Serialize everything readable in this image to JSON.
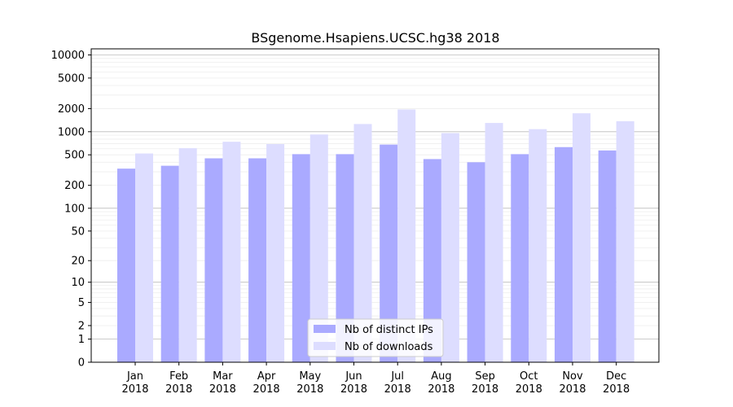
{
  "chart_data": {
    "type": "bar",
    "title": "BSgenome.Hsapiens.UCSC.hg38 2018",
    "xlabel": "",
    "ylabel": "",
    "yscale": "log1p",
    "ylim": [
      0,
      12000
    ],
    "yticks": [
      0,
      1,
      2,
      5,
      10,
      20,
      50,
      100,
      200,
      500,
      1000,
      2000,
      5000,
      10000
    ],
    "ytick_labels": [
      "0",
      "1",
      "2",
      "5",
      "10",
      "20",
      "50",
      "100",
      "200",
      "500",
      "1000",
      "2000",
      "5000",
      "10000"
    ],
    "grid": true,
    "legend_position": "bottom-center",
    "categories": [
      [
        "Jan",
        "2018"
      ],
      [
        "Feb",
        "2018"
      ],
      [
        "Mar",
        "2018"
      ],
      [
        "Apr",
        "2018"
      ],
      [
        "May",
        "2018"
      ],
      [
        "Jun",
        "2018"
      ],
      [
        "Jul",
        "2018"
      ],
      [
        "Aug",
        "2018"
      ],
      [
        "Sep",
        "2018"
      ],
      [
        "Oct",
        "2018"
      ],
      [
        "Nov",
        "2018"
      ],
      [
        "Dec",
        "2018"
      ]
    ],
    "series": [
      {
        "name": "Nb of distinct IPs",
        "color": "#aaaaff",
        "values": [
          330,
          360,
          450,
          450,
          510,
          510,
          680,
          440,
          400,
          510,
          630,
          570
        ]
      },
      {
        "name": "Nb of downloads",
        "color": "#ddddff",
        "values": [
          520,
          610,
          740,
          690,
          920,
          1260,
          1950,
          960,
          1300,
          1080,
          1740,
          1370
        ]
      }
    ]
  }
}
